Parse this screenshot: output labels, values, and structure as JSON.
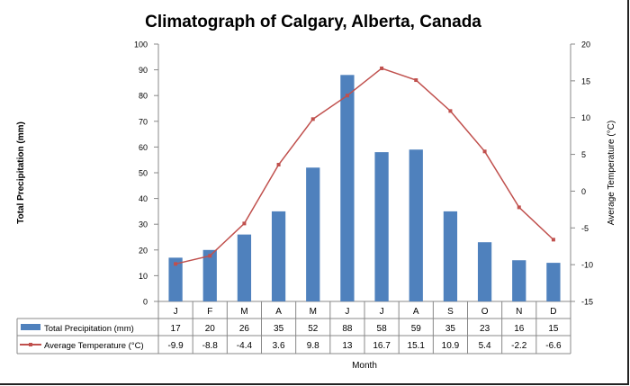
{
  "chart_data": {
    "type": "bar+line",
    "title": "Climatograph of Calgary, Alberta, Canada",
    "xlabel": "Month",
    "ylabel": "Total Precipitation (mm)",
    "y2label": "Average Temperature (°C)",
    "categories": [
      "J",
      "F",
      "M",
      "A",
      "M",
      "J",
      "J",
      "A",
      "S",
      "O",
      "N",
      "D"
    ],
    "ylim": [
      0,
      100
    ],
    "y2lim": [
      -15,
      20
    ],
    "yticks": [
      0,
      10,
      20,
      30,
      40,
      50,
      60,
      70,
      80,
      90,
      100
    ],
    "y2ticks": [
      -15,
      -10,
      -5,
      0,
      5,
      10,
      15,
      20
    ],
    "grid": false,
    "legend": "data-table",
    "series": [
      {
        "name": "Total Precipitation (mm)",
        "type": "bar",
        "axis": "left",
        "color": "#4f81bd",
        "values": [
          17,
          20,
          26,
          35,
          52,
          88,
          58,
          59,
          35,
          23,
          16,
          15
        ]
      },
      {
        "name": "Average Temperature (°C)",
        "type": "line",
        "axis": "right",
        "color": "#c0504d",
        "values": [
          -9.9,
          -8.8,
          -4.4,
          3.6,
          9.8,
          13,
          16.7,
          15.1,
          10.9,
          5.4,
          -2.2,
          -6.6
        ]
      }
    ]
  }
}
